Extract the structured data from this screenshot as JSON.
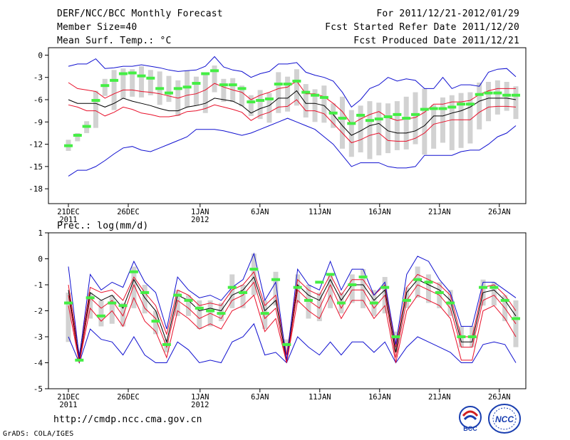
{
  "header": {
    "title": "DERF/NCC/BCC Monthly Forecast",
    "member_size": "Member Size=40",
    "variable1": "Mean Surf. Temp.: °C",
    "period": "For 2011/12/21-2012/01/29",
    "started": "Fcst Started Refer Date 2011/12/20",
    "produced": "Fcst Produced Date 2011/12/21"
  },
  "footer": {
    "url": "http://cmdp.ncc.cma.gov.cn",
    "credit": "GrADS: COLA/IGES",
    "logo_bcc_text": "BCC",
    "logo_ncc_text": "NCC"
  },
  "colors": {
    "mean": "#000000",
    "percentile": "#e8102a",
    "extreme": "#1010d0",
    "box": "#d2d2d2",
    "marker": "#44ee44"
  },
  "chart_data": [
    {
      "type": "line",
      "title": "Mean Surf. Temp.: °C",
      "ylim": [
        -20,
        1
      ],
      "yticks": [
        0,
        -3,
        -6,
        -9,
        -12,
        -15,
        -18
      ],
      "ytick_labels": [
        "0",
        "-3",
        "-6",
        "-9",
        "-12",
        "-15",
        "-18"
      ],
      "xtick_days": [
        0,
        5,
        11,
        16,
        21,
        26,
        31,
        36
      ],
      "xtick_labels": [
        "21DEC",
        "26DEC",
        "1JAN",
        "6JAN",
        "11JAN",
        "16JAN",
        "21JAN",
        "26JAN"
      ],
      "xtick_year_labels": [
        {
          "day": 0,
          "label": "2011"
        },
        {
          "day": 11,
          "label": "2012"
        }
      ],
      "series": [
        {
          "name": "mean",
          "values": [
            -6.0,
            -6.5,
            -6.5,
            -6.5,
            -7.0,
            -6.5,
            -5.8,
            -6.2,
            -6.5,
            -6.8,
            -7.2,
            -7.5,
            -7.5,
            -7.0,
            -6.8,
            -6.5,
            -5.8,
            -6.0,
            -6.2,
            -6.8,
            -7.8,
            -7.2,
            -6.8,
            -5.8,
            -5.8,
            -4.8,
            -6.5,
            -6.5,
            -6.8,
            -8.0,
            -9.5,
            -10.8,
            -10.2,
            -9.5,
            -9.2,
            -10.2,
            -10.5,
            -10.5,
            -10.2,
            -9.5,
            -8.2,
            -8.2,
            -7.8,
            -7.5,
            -7.0,
            -6.2,
            -5.8,
            -5.8,
            -5.8,
            -6.0
          ]
        },
        {
          "name": "p_upper",
          "values": [
            -3.7,
            -4.5,
            -4.7,
            -4.9,
            -5.8,
            -5.2,
            -4.7,
            -4.7,
            -4.9,
            -5.0,
            -5.2,
            -5.5,
            -5.8,
            -5.4,
            -5.2,
            -4.7,
            -3.8,
            -4.3,
            -4.7,
            -5.0,
            -6.0,
            -5.4,
            -5.0,
            -4.5,
            -4.3,
            -3.5,
            -5.2,
            -5.2,
            -5.6,
            -6.5,
            -7.6,
            -9.3,
            -8.6,
            -8.0,
            -7.6,
            -8.4,
            -8.8,
            -8.6,
            -8.4,
            -7.7,
            -6.6,
            -6.6,
            -6.3,
            -6.3,
            -6.1,
            -5.3,
            -4.8,
            -4.5,
            -4.5,
            -4.5
          ]
        },
        {
          "name": "p_lower",
          "values": [
            -6.7,
            -7.0,
            -7.5,
            -7.5,
            -8.2,
            -7.7,
            -7.0,
            -7.3,
            -7.8,
            -8.0,
            -8.3,
            -8.3,
            -8.1,
            -7.6,
            -7.5,
            -7.2,
            -6.7,
            -7.0,
            -7.3,
            -7.7,
            -8.8,
            -8.1,
            -7.7,
            -7.0,
            -6.9,
            -6.0,
            -7.5,
            -7.5,
            -7.9,
            -9.2,
            -10.5,
            -11.8,
            -11.4,
            -10.8,
            -10.5,
            -11.5,
            -11.6,
            -11.6,
            -11.2,
            -10.5,
            -9.3,
            -9.0,
            -8.7,
            -8.7,
            -8.7,
            -7.7,
            -7.0,
            -6.9,
            -6.9,
            -7.0
          ]
        },
        {
          "name": "max",
          "values": [
            -1.5,
            -1.2,
            -1.2,
            -0.5,
            -1.8,
            -1.7,
            -1.5,
            -1.5,
            -1.3,
            -1.5,
            -1.7,
            -2.0,
            -2.2,
            -2.1,
            -2.0,
            -1.5,
            -0.2,
            -1.6,
            -2.0,
            -2.2,
            -3.0,
            -2.5,
            -2.2,
            -1.2,
            -1.2,
            -1.0,
            -2.3,
            -2.7,
            -3.0,
            -3.5,
            -5.0,
            -7.0,
            -6.0,
            -4.5,
            -4.0,
            -3.0,
            -3.5,
            -3.2,
            -3.4,
            -4.5,
            -4.5,
            -3.0,
            -4.5,
            -4.0,
            -4.0,
            -4.2,
            -2.3,
            -1.9,
            -1.8,
            -2.9
          ]
        },
        {
          "name": "min",
          "values": [
            -16.3,
            -15.5,
            -15.5,
            -15.0,
            -14.2,
            -13.3,
            -12.5,
            -12.3,
            -12.8,
            -13.0,
            -12.5,
            -12.0,
            -11.5,
            -11.0,
            -10.0,
            -10.0,
            -10.0,
            -10.2,
            -10.5,
            -10.8,
            -10.5,
            -10.0,
            -9.5,
            -9.0,
            -8.5,
            -9.0,
            -9.5,
            -10.0,
            -11.0,
            -12.0,
            -13.5,
            -15.0,
            -14.5,
            -14.5,
            -14.5,
            -15.0,
            -15.2,
            -15.2,
            -15.0,
            -13.5,
            -13.5,
            -13.5,
            -13.5,
            -13.0,
            -12.8,
            -12.8,
            -12.0,
            -11.0,
            -10.5,
            -9.5
          ]
        }
      ],
      "boxes": [
        [
          -11.4,
          -12.9
        ],
        [
          -10.5,
          -11.6
        ],
        [
          -8.9,
          -10.5
        ],
        [
          -4.8,
          -9.8
        ],
        [
          -3.2,
          -5.5
        ],
        [
          -2.0,
          -7.4
        ],
        [
          -1.8,
          -5.9
        ],
        [
          -1.9,
          -5.6
        ],
        [
          -1.5,
          -5.7
        ],
        [
          -2.0,
          -5.4
        ],
        [
          -2.2,
          -6.7
        ],
        [
          -2.8,
          -6.3
        ],
        [
          -3.4,
          -8.2
        ],
        [
          -2.1,
          -7.0
        ],
        [
          -2.9,
          -6.8
        ],
        [
          -2.6,
          -7.8
        ],
        [
          -1.4,
          -5.0
        ],
        [
          -3.2,
          -6.3
        ],
        [
          -3.1,
          -6.3
        ],
        [
          -4.1,
          -6.9
        ],
        [
          -5.4,
          -8.2
        ],
        [
          -4.7,
          -8.6
        ],
        [
          -5.1,
          -9.1
        ],
        [
          -2.3,
          -7.8
        ],
        [
          -2.9,
          -7.6
        ],
        [
          -1.9,
          -6.8
        ],
        [
          -3.9,
          -8.4
        ],
        [
          -4.6,
          -9.0
        ],
        [
          -4.1,
          -9.1
        ],
        [
          -6.5,
          -9.8
        ],
        [
          -5.6,
          -12.6
        ],
        [
          -7.4,
          -13.7
        ],
        [
          -6.8,
          -13.1
        ],
        [
          -6.2,
          -14.0
        ],
        [
          -6.4,
          -13.5
        ],
        [
          -6.5,
          -13.2
        ],
        [
          -6.2,
          -12.8
        ],
        [
          -5.6,
          -12.7
        ],
        [
          -5.0,
          -12.0
        ],
        [
          -4.5,
          -13.4
        ],
        [
          -6.7,
          -12.6
        ],
        [
          -5.7,
          -11.8
        ],
        [
          -5.4,
          -12.8
        ],
        [
          -5.1,
          -12.5
        ],
        [
          -5.0,
          -11.9
        ],
        [
          -3.7,
          -10.0
        ],
        [
          -3.6,
          -8.9
        ],
        [
          -3.4,
          -8.0
        ],
        [
          -3.6,
          -7.5
        ],
        [
          -4.2,
          -8.6
        ]
      ],
      "markers": [
        -12.2,
        -10.8,
        -9.6,
        -6.1,
        -4.1,
        -3.4,
        -2.5,
        -2.4,
        -2.8,
        -3.1,
        -4.5,
        -5.1,
        -4.5,
        -4.3,
        -3.8,
        -2.5,
        -2.1,
        -4.0,
        -4.0,
        -4.5,
        -6.3,
        -6.1,
        -5.9,
        -3.9,
        -3.9,
        -3.5,
        -5.0,
        -5.4,
        -5.7,
        -7.8,
        -8.5,
        -9.2,
        -8.1,
        -8.8,
        -8.6,
        -8.3,
        -8.0,
        -8.5,
        -8.0,
        -7.3,
        -7.2,
        -7.2,
        -7.0,
        -6.6,
        -6.6,
        -5.3,
        -5.1,
        -5.1,
        -5.4,
        -5.4
      ]
    },
    {
      "type": "line",
      "title": "Prec.: log(mm/d)",
      "ylim": [
        -5,
        1
      ],
      "yticks": [
        1,
        0,
        -1,
        -2,
        -3,
        -4,
        -5
      ],
      "ytick_labels": [
        "1",
        "0",
        "-1",
        "-2",
        "-3",
        "-4",
        "-5"
      ],
      "xtick_days": [
        0,
        5,
        11,
        16,
        21,
        26,
        31,
        36
      ],
      "xtick_labels": [
        "21DEC",
        "26DEC",
        "1JAN",
        "6JAN",
        "11JAN",
        "16JAN",
        "21JAN",
        "26JAN"
      ],
      "xtick_year_labels": [
        {
          "day": 0,
          "label": "2011"
        },
        {
          "day": 11,
          "label": "2012"
        }
      ],
      "series": [
        {
          "name": "mean",
          "values": [
            -1.2,
            -3.9,
            -1.3,
            -1.6,
            -1.4,
            -1.9,
            -0.8,
            -1.5,
            -2.0,
            -3.2,
            -1.4,
            -1.6,
            -2.0,
            -1.9,
            -2.0,
            -1.4,
            -1.2,
            -0.7,
            -2.0,
            -1.6,
            -3.9,
            -1.0,
            -1.4,
            -1.6,
            -0.8,
            -1.6,
            -1.0,
            -1.0,
            -1.6,
            -1.2,
            -3.6,
            -1.3,
            -0.8,
            -1.0,
            -1.2,
            -1.6,
            -3.2,
            -3.2,
            -1.3,
            -1.2,
            -1.6,
            -2.2
          ]
        },
        {
          "name": "p_upper",
          "values": [
            -1.0,
            -3.7,
            -1.1,
            -1.3,
            -1.2,
            -1.6,
            -0.7,
            -1.3,
            -1.8,
            -2.9,
            -1.2,
            -1.4,
            -1.8,
            -1.7,
            -1.8,
            -1.2,
            -1.0,
            -0.5,
            -1.8,
            -1.4,
            -3.7,
            -0.8,
            -1.2,
            -1.4,
            -0.6,
            -1.4,
            -0.8,
            -0.8,
            -1.4,
            -1.0,
            -3.4,
            -1.1,
            -0.6,
            -0.8,
            -1.0,
            -1.4,
            -3.0,
            -3.0,
            -1.1,
            -1.0,
            -1.4,
            -2.0
          ]
        },
        {
          "name": "p_lower",
          "values": [
            -1.4,
            -4.0,
            -1.5,
            -1.9,
            -1.6,
            -2.2,
            -1.0,
            -1.9,
            -2.3,
            -3.4,
            -1.6,
            -1.9,
            -2.3,
            -2.1,
            -2.3,
            -1.6,
            -1.4,
            -0.9,
            -2.3,
            -1.9,
            -4.0,
            -1.2,
            -1.6,
            -1.9,
            -1.0,
            -1.9,
            -1.2,
            -1.2,
            -1.9,
            -1.4,
            -3.8,
            -1.6,
            -1.0,
            -1.2,
            -1.4,
            -1.9,
            -3.4,
            -3.4,
            -1.6,
            -1.4,
            -1.9,
            -2.5
          ]
        },
        {
          "name": "max",
          "values": [
            -0.3,
            -3.8,
            -0.6,
            -1.2,
            -0.9,
            -1.1,
            -0.1,
            -0.9,
            -1.3,
            -2.7,
            -0.7,
            -1.2,
            -1.5,
            -1.4,
            -1.6,
            -1.1,
            -0.8,
            0.2,
            -1.6,
            -0.9,
            -3.9,
            -0.4,
            -1.0,
            -1.2,
            -0.1,
            -1.2,
            -0.4,
            -0.4,
            -1.4,
            -0.9,
            -3.3,
            -0.6,
            0.1,
            -0.1,
            -0.8,
            -1.3,
            -2.6,
            -2.6,
            -0.9,
            -0.9,
            -1.2,
            -1.5
          ]
        },
        {
          "name": "min",
          "values": [
            -3.0,
            -4.0,
            -2.7,
            -3.1,
            -3.2,
            -3.7,
            -3.0,
            -3.7,
            -4.0,
            -4.0,
            -3.2,
            -3.5,
            -4.0,
            -3.9,
            -4.0,
            -3.2,
            -3.0,
            -2.5,
            -3.7,
            -3.6,
            -4.0,
            -3.0,
            -3.4,
            -3.7,
            -3.2,
            -3.7,
            -3.2,
            -3.2,
            -3.6,
            -3.2,
            -4.0,
            -3.4,
            -3.0,
            -3.2,
            -3.4,
            -3.6,
            -4.0,
            -4.0,
            -3.3,
            -3.2,
            -3.3,
            -4.0
          ]
        },
        {
          "name": "p_lower2",
          "values": [
            -1.8,
            -4.0,
            -1.9,
            -2.4,
            -2.0,
            -2.6,
            -1.5,
            -2.4,
            -2.8,
            -3.8,
            -2.0,
            -2.3,
            -2.7,
            -2.5,
            -2.7,
            -2.0,
            -1.8,
            -1.4,
            -2.8,
            -2.3,
            -4.0,
            -1.6,
            -2.0,
            -2.3,
            -1.4,
            -2.3,
            -1.6,
            -1.6,
            -2.3,
            -1.8,
            -4.0,
            -2.0,
            -1.4,
            -1.6,
            -1.8,
            -2.3,
            -3.9,
            -3.9,
            -2.0,
            -1.8,
            -2.3,
            -3.0
          ]
        }
      ],
      "boxes": [
        [
          -1.3,
          -3.2
        ],
        [
          -3.8,
          -3.9
        ],
        [
          -1.3,
          -2.3
        ],
        [
          -1.6,
          -2.6
        ],
        [
          -1.4,
          -2.5
        ],
        [
          -1.7,
          -2.6
        ],
        [
          -0.3,
          -1.9
        ],
        [
          -1.0,
          -2.1
        ],
        [
          -2.0,
          -2.9
        ],
        [
          -3.1,
          -3.6
        ],
        [
          -1.2,
          -2.2
        ],
        [
          -1.4,
          -2.2
        ],
        [
          -1.6,
          -2.7
        ],
        [
          -1.6,
          -2.6
        ],
        [
          -1.7,
          -2.4
        ],
        [
          -0.6,
          -1.9
        ],
        [
          -1.0,
          -1.9
        ],
        [
          0.2,
          -1.4
        ],
        [
          -1.6,
          -2.7
        ],
        [
          -0.5,
          -1.8
        ],
        [
          -3.1,
          -3.6
        ],
        [
          -0.6,
          -1.7
        ],
        [
          -1.0,
          -2.3
        ],
        [
          -1.3,
          -2.4
        ],
        [
          -0.6,
          -1.9
        ],
        [
          -1.3,
          -2.1
        ],
        [
          -0.6,
          -1.7
        ],
        [
          -0.4,
          -1.9
        ],
        [
          -1.2,
          -2.2
        ],
        [
          -0.7,
          -2.1
        ],
        [
          -2.8,
          -3.6
        ],
        [
          -1.1,
          -1.9
        ],
        [
          -0.3,
          -1.5
        ],
        [
          -0.6,
          -1.7
        ],
        [
          -0.9,
          -1.9
        ],
        [
          -1.2,
          -2.2
        ],
        [
          -2.6,
          -3.4
        ],
        [
          -2.6,
          -3.4
        ],
        [
          -0.8,
          -1.8
        ],
        [
          -0.9,
          -1.8
        ],
        [
          -1.4,
          -2.4
        ],
        [
          -1.6,
          -3.4
        ]
      ],
      "markers": [
        -1.7,
        -3.9,
        -1.5,
        -2.2,
        -1.7,
        -1.8,
        -0.5,
        -1.3,
        -2.4,
        -3.3,
        -1.4,
        -1.6,
        -1.9,
        -2.0,
        -2.1,
        -1.1,
        -1.3,
        -0.4,
        -2.1,
        -0.8,
        -3.3,
        -1.1,
        -1.6,
        -0.9,
        -0.6,
        -1.7,
        -1.0,
        -0.7,
        -1.7,
        -1.1,
        -3.0,
        -1.6,
        -0.8,
        -0.9,
        -1.3,
        -1.7,
        -3.0,
        -3.0,
        -1.1,
        -1.1,
        -1.6,
        -2.3
      ]
    }
  ],
  "sub_header2": "Prec.: log(mm/d)"
}
